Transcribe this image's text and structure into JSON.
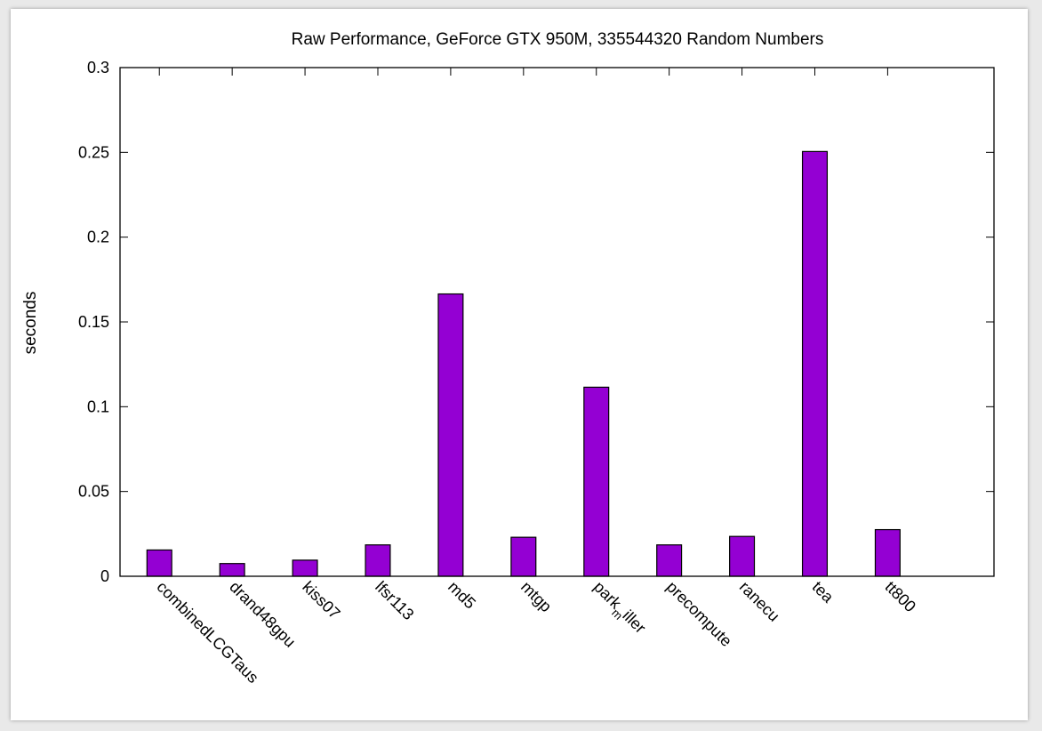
{
  "colors": {
    "bar_fill": "#9400d3",
    "bar_stroke": "#000000",
    "page": "#ffffff",
    "background": "#e9e9e9"
  },
  "chart_data": {
    "type": "bar",
    "title": "Raw Performance, GeForce GTX 950M, 335544320 Random Numbers",
    "xlabel": "",
    "ylabel": "seconds",
    "ylim": [
      0,
      0.3
    ],
    "yticks": [
      {
        "value": 0,
        "label": "0"
      },
      {
        "value": 0.05,
        "label": "0.05"
      },
      {
        "value": 0.1,
        "label": "0.1"
      },
      {
        "value": 0.15,
        "label": "0.15"
      },
      {
        "value": 0.2,
        "label": "0.2"
      },
      {
        "value": 0.25,
        "label": "0.25"
      },
      {
        "value": 0.3,
        "label": "0.3"
      }
    ],
    "categories": [
      "combinedLCGTaus",
      "drand48gpu",
      "kiss07",
      "lfsr113",
      "md5",
      "mtgp",
      "park_miller",
      "precompute",
      "ranecu",
      "tea",
      "tt800"
    ],
    "category_labels": [
      {
        "text": "combinedLCGTaus"
      },
      {
        "text": "drand48gpu"
      },
      {
        "text": "kiss07"
      },
      {
        "text": "lfsr113"
      },
      {
        "text": "md5"
      },
      {
        "text": "mtgp"
      },
      {
        "pre": "park",
        "sub": "m",
        "post": "iller"
      },
      {
        "text": "precompute"
      },
      {
        "text": "ranecu"
      },
      {
        "text": "tea"
      },
      {
        "text": "tt800"
      }
    ],
    "values": [
      0.0155,
      0.0075,
      0.0095,
      0.0185,
      0.1665,
      0.023,
      0.1115,
      0.0185,
      0.0235,
      0.2505,
      0.0275
    ],
    "grid": false,
    "legend": "none"
  }
}
